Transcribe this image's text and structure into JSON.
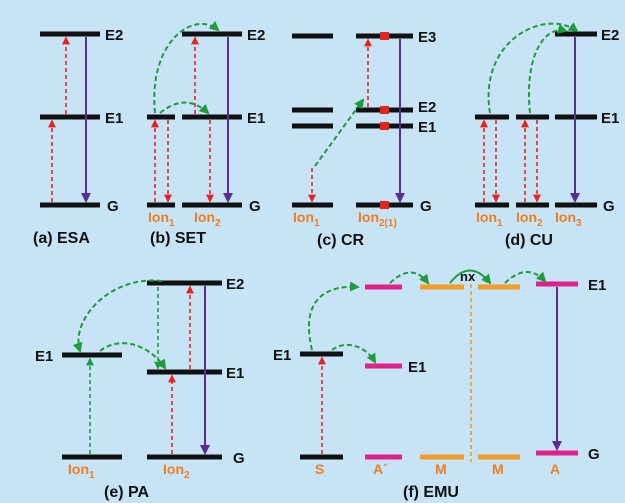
{
  "colors": {
    "background": "#c6e4f6",
    "level": "#111111",
    "level_magenta": "#e0218a",
    "level_orange": "#f39c2a",
    "excitation_arrow": "#e8231c",
    "emission_arrow": "#5b2d91",
    "transfer_arrow": "#1e9b3a",
    "ion_label": "#f07d1e"
  },
  "panels": {
    "a": {
      "caption": "(a) ESA",
      "levels": {
        "e2": "E2",
        "e1": "E1",
        "g": "G"
      }
    },
    "b": {
      "caption": "(b) SET",
      "levels": {
        "e2": "E2",
        "e1": "E1",
        "g": "G"
      },
      "ions": [
        {
          "name": "Ion",
          "sub": "1"
        },
        {
          "name": "Ion",
          "sub": "2"
        }
      ]
    },
    "c": {
      "caption": "(c) CR",
      "levels": {
        "e3": "E3",
        "e2": "E2",
        "e1": "E1",
        "g": "G"
      },
      "ions": [
        {
          "name": "Ion",
          "sub": "1"
        },
        {
          "name": "Ion",
          "sub": "2(1)"
        }
      ]
    },
    "d": {
      "caption": "(d) CU",
      "levels": {
        "e2": "E2",
        "e1": "E1",
        "g": "G"
      },
      "ions": [
        {
          "name": "Ion",
          "sub": "1"
        },
        {
          "name": "Ion",
          "sub": "2"
        },
        {
          "name": "Ion",
          "sub": "3"
        }
      ]
    },
    "e": {
      "caption": "(e) PA",
      "levels": {
        "e1_left": "E1",
        "e2": "E2",
        "e1_right": "E1",
        "g": "G"
      },
      "ions": [
        {
          "name": "Ion",
          "sub": "1"
        },
        {
          "name": "Ion",
          "sub": "2"
        }
      ]
    },
    "f": {
      "caption": "(f) EMU",
      "levels": {
        "e1_sensitizer": "E1",
        "e1_mid": "E1",
        "e1_top": "E1",
        "g": "G"
      },
      "migration_label": "nx",
      "ions": [
        "S",
        "A´",
        "M",
        "M",
        "A"
      ]
    }
  }
}
